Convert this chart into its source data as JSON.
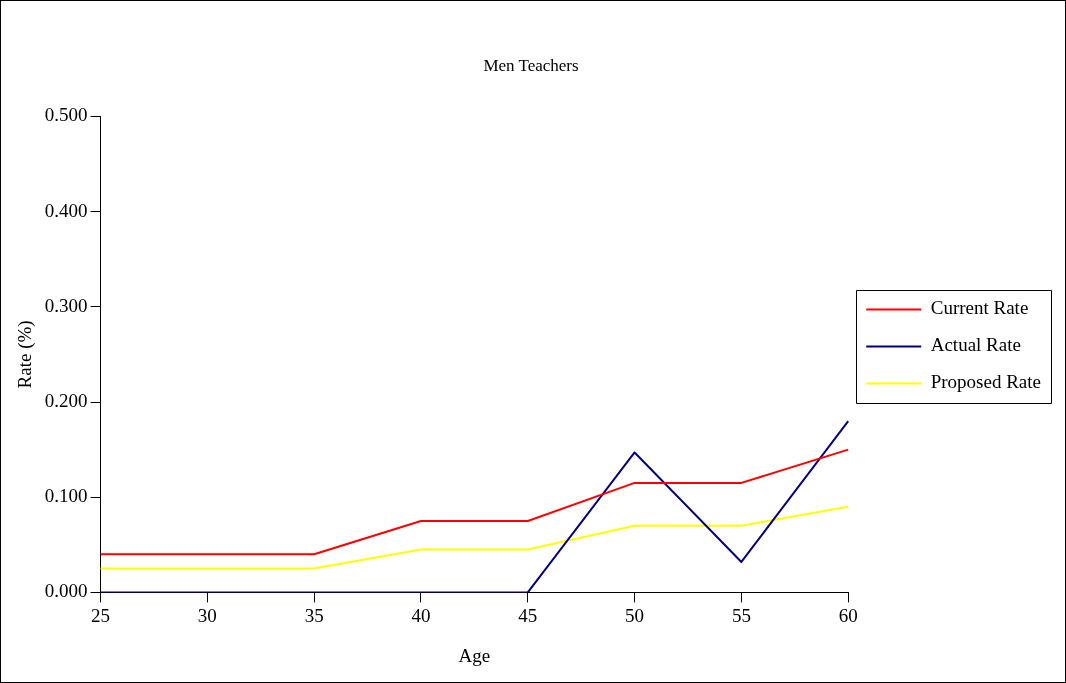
{
  "chart_data": {
    "type": "line",
    "title": "Men Teachers",
    "xlabel": "Age",
    "ylabel": "Rate (%)",
    "categories": [
      "25",
      "30",
      "35",
      "40",
      "45",
      "50",
      "55",
      "60"
    ],
    "series": [
      {
        "name": "Current Rate",
        "color": "#ff0000",
        "values": [
          0.04,
          0.04,
          0.04,
          0.075,
          0.075,
          0.115,
          0.115,
          0.15
        ]
      },
      {
        "name": "Actual Rate",
        "color": "#000080",
        "values": [
          0,
          0,
          0,
          0,
          0,
          0.147,
          0.032,
          0.18
        ]
      },
      {
        "name": "Proposed Rate",
        "color": "#ffff00",
        "values": [
          0.025,
          0.025,
          0.025,
          0.045,
          0.045,
          0.07,
          0.07,
          0.09
        ]
      }
    ],
    "ylim": [
      0,
      0.5
    ],
    "yticks": [
      {
        "value": 0,
        "label": "0.000"
      },
      {
        "value": 0.1,
        "label": "0.100"
      },
      {
        "value": 0.2,
        "label": "0.200"
      },
      {
        "value": 0.3,
        "label": "0.300"
      },
      {
        "value": 0.4,
        "label": "0.400"
      },
      {
        "value": 0.5,
        "label": "0.500"
      }
    ],
    "grid": false,
    "legend": "right",
    "marker": "none",
    "line_style": "solid"
  }
}
